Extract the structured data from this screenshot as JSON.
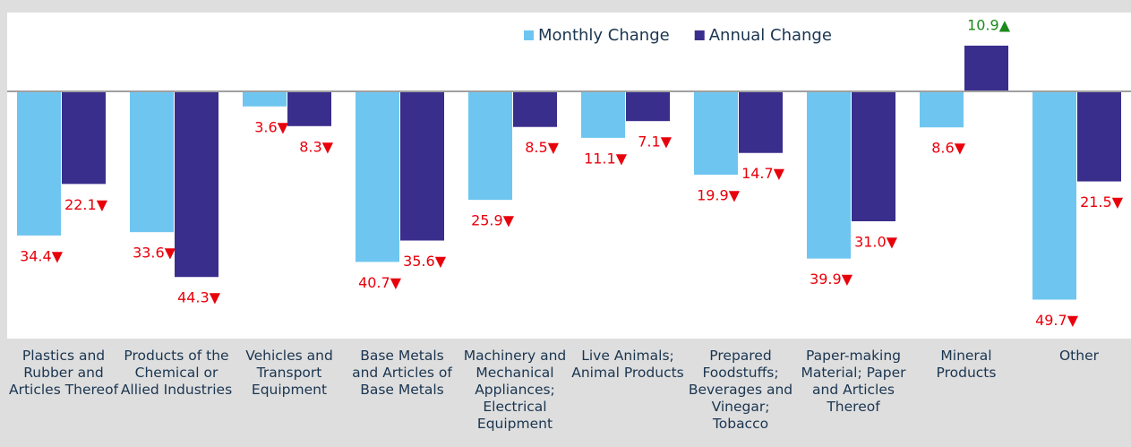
{
  "chart_data": {
    "type": "bar",
    "categories": [
      "Plastics and Rubber and Articles Thereof",
      "Products of the Chemical or Allied Industries",
      "Vehicles and Transport Equipment",
      "Base Metals and Articles of Base Metals",
      "Machinery and Mechanical Appliances; Electrical Equipment",
      "Live Animals; Animal Products",
      "Prepared Foodstuffs; Beverages and Vinegar; Tobacco",
      "Paper-making Material; Paper and Articles Thereof",
      "Mineral Products",
      "Other"
    ],
    "series": [
      {
        "name": "Monthly Change",
        "color": "#6ec6f0",
        "values": [
          -34.4,
          -33.6,
          -3.6,
          -40.7,
          -25.9,
          -11.1,
          -19.9,
          -39.9,
          -8.6,
          -49.7
        ],
        "value_labels": [
          "34.4▼",
          "33.6▼",
          "3.6▼",
          "40.7▼",
          "25.9▼",
          "11.1▼",
          "19.9▼",
          "39.9▼",
          "8.6▼",
          "49.7▼"
        ]
      },
      {
        "name": "Annual Change",
        "color": "#3a2e8c",
        "values": [
          -22.1,
          -44.3,
          -8.3,
          -35.6,
          -8.5,
          -7.1,
          -14.7,
          -31.0,
          10.9,
          -21.5
        ],
        "value_labels": [
          "22.1▼",
          "44.3▼",
          "8.3▼",
          "35.6▼",
          "8.5▼",
          "7.1▼",
          "14.7▼",
          "31.0▼",
          "10.9▲",
          "21.5▼"
        ]
      }
    ],
    "ylim": [
      -59,
      18.8
    ],
    "label_colors": {
      "negative": "#e8000b",
      "positive": "#1a8a1a"
    }
  }
}
